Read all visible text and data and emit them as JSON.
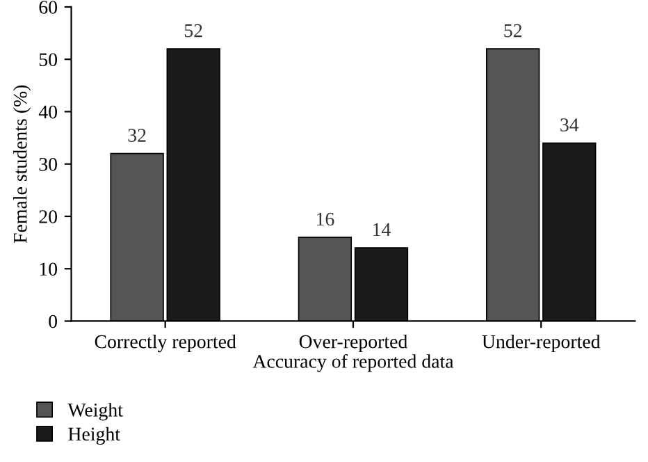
{
  "chart_data": {
    "type": "bar",
    "xlabel": "Accuracy of reported data",
    "ylabel": "Female students (%)",
    "categories": [
      "Correctly reported",
      "Over-reported",
      "Under-reported"
    ],
    "series": [
      {
        "name": "Weight",
        "color": "#555555",
        "values": [
          32,
          16,
          52
        ]
      },
      {
        "name": "Height",
        "color": "#1a1a1a",
        "values": [
          52,
          14,
          34
        ]
      }
    ],
    "ylim": [
      0,
      60
    ],
    "yticks": [
      0,
      10,
      20,
      30,
      40,
      50,
      60
    ],
    "grid": false,
    "legend": "bottom",
    "data_labels": true
  }
}
